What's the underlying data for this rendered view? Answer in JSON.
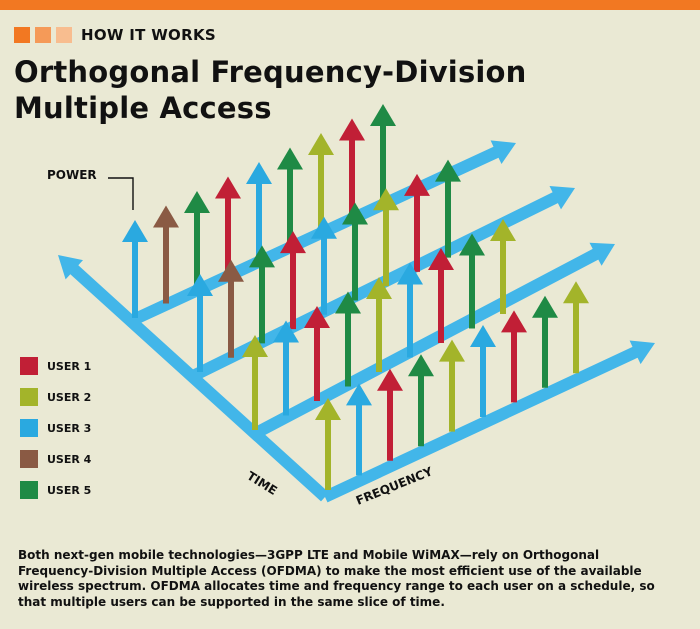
{
  "header": {
    "kicker": "HOW IT WORKS",
    "title_line1": "Orthogonal Frequency-Division",
    "title_line2": "Multiple Access"
  },
  "diagram": {
    "power_label": "POWER",
    "time_label": "TIME",
    "frequency_label": "FREQUENCY",
    "colors": {
      "user1": "#c11f36",
      "user2": "#a3b42a",
      "user3": "#2aa9e0",
      "user4": "#8a5a44",
      "user5": "#1f8a45",
      "axis": "#42b6e9",
      "axis_tip": "#bfe3f5"
    },
    "rows": [
      [
        "user3",
        "user4",
        "user5",
        "user1",
        "user3",
        "user5",
        "user2",
        "user1",
        "user5"
      ],
      [
        "user3",
        "user4",
        "user5",
        "user1",
        "user3",
        "user5",
        "user2",
        "user1",
        "user5"
      ],
      [
        "user2",
        "user3",
        "user1",
        "user5",
        "user2",
        "user3",
        "user1",
        "user5",
        "user2"
      ],
      [
        "user2",
        "user3",
        "user1",
        "user5",
        "user2",
        "user3",
        "user1",
        "user5",
        "user2"
      ]
    ]
  },
  "legend": [
    {
      "label": "USER 1",
      "color": "#c11f36"
    },
    {
      "label": "USER 2",
      "color": "#a3b42a"
    },
    {
      "label": "USER 3",
      "color": "#2aa9e0"
    },
    {
      "label": "USER 4",
      "color": "#8a5a44"
    },
    {
      "label": "USER 5",
      "color": "#1f8a45"
    }
  ],
  "caption": "Both next-gen mobile technologies—3GPP LTE and Mobile WiMAX—rely on Orthogonal Frequency-Division Multiple Access (OFDMA) to make the most efficient use of the available wireless spectrum. OFDMA allocates time and frequency range to each user on a schedule, so that multiple users can be supported in the same slice of time."
}
